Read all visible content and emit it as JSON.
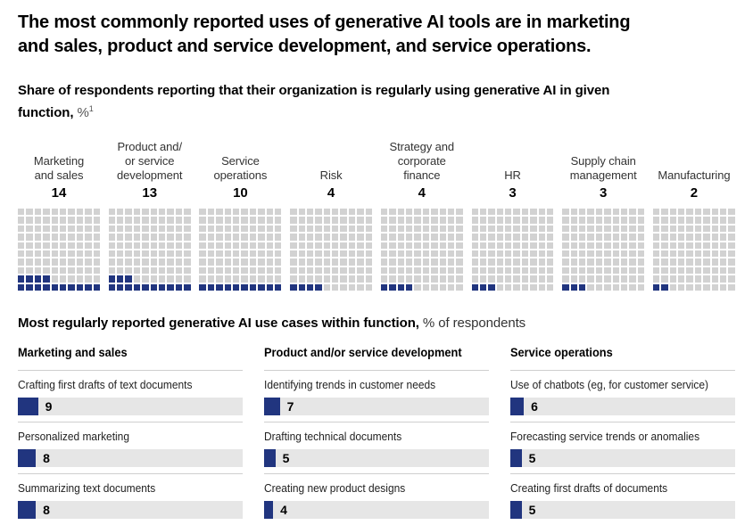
{
  "header": {
    "title_line1": "The most commonly reported uses of generative AI tools are in marketing",
    "title_line2": "and sales, product and service development, and service operations."
  },
  "waffle_section": {
    "subtitle_line1": "Share of respondents reporting that their organization is regularly using generative AI in given",
    "subtitle_line2_bold": "function,",
    "unit": "%",
    "footnote_marker": "1"
  },
  "use_cases_section": {
    "title_bold": "Most regularly reported generative AI use cases within function,",
    "title_regular": "% of respondents"
  },
  "chart_data": [
    {
      "type": "heatmap",
      "subtype": "waffle-10x10",
      "title": "Share of respondents reporting that their organization is regularly using generative AI in given function, %",
      "grid": "10x10",
      "fill_order": "bottom-left, row by row",
      "categories": [
        "Marketing and sales",
        "Product and/or service development",
        "Service operations",
        "Risk",
        "Strategy and corporate finance",
        "HR",
        "Supply chain management",
        "Manufacturing"
      ],
      "values": [
        14,
        13,
        10,
        4,
        4,
        3,
        3,
        2
      ],
      "label_lines": [
        [
          "Marketing",
          "and sales"
        ],
        [
          "Product and/",
          "or service",
          "development"
        ],
        [
          "Service",
          "operations"
        ],
        [
          "Risk"
        ],
        [
          "Strategy and",
          "corporate",
          "finance"
        ],
        [
          "HR"
        ],
        [
          "Supply chain",
          "management"
        ],
        [
          "Manufacturing"
        ]
      ]
    },
    {
      "type": "bar",
      "title": "Most regularly reported generative AI use cases within function, % of respondents",
      "orientation": "horizontal",
      "xlim": [
        0,
        100
      ],
      "groups": [
        {
          "name": "Marketing and sales",
          "categories": [
            "Crafting first drafts of text documents",
            "Personalized marketing",
            "Summarizing text documents"
          ],
          "values": [
            9,
            8,
            8
          ]
        },
        {
          "name": "Product and/or service development",
          "categories": [
            "Identifying trends in customer needs",
            "Drafting technical documents",
            "Creating new product designs"
          ],
          "values": [
            7,
            5,
            4
          ]
        },
        {
          "name": "Service operations",
          "categories": [
            "Use of chatbots (eg, for customer service)",
            "Forecasting service trends or anomalies",
            "Creating first drafts of documents"
          ],
          "values": [
            6,
            5,
            5
          ]
        }
      ]
    }
  ],
  "colors": {
    "accent_navy": "#21357f",
    "waffle_empty": "#d2d2d2",
    "bar_track": "#e6e6e6",
    "rule": "#cfcfcf"
  }
}
